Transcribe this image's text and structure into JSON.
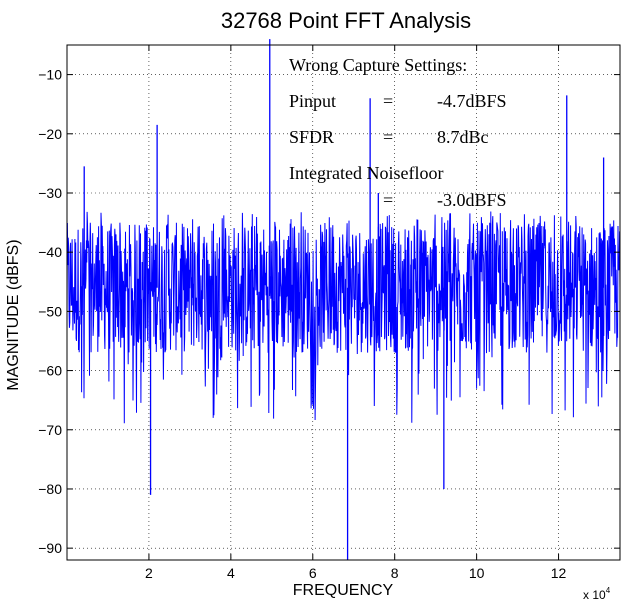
{
  "chart_data": {
    "type": "line",
    "title": "32768 Point FFT Analysis",
    "xlabel": "FREQUENCY",
    "ylabel": "MAGNITUDE (dBFS)",
    "x_exponent_label": "x 10",
    "x_exponent_power": "4",
    "xlim": [
      0,
      135000
    ],
    "ylim": [
      -92,
      -5
    ],
    "x_ticks": [
      20000,
      40000,
      60000,
      80000,
      100000,
      120000
    ],
    "x_tick_labels": [
      "2",
      "4",
      "6",
      "8",
      "10",
      "12"
    ],
    "y_ticks": [
      -10,
      -20,
      -30,
      -40,
      -50,
      -60,
      -70,
      -80,
      -90
    ],
    "y_tick_labels": [
      "−10",
      "−20",
      "−30",
      "−40",
      "−50",
      "−60",
      "−70",
      "−80",
      "−90"
    ],
    "grid": true,
    "series_color": "#0000ff",
    "noise_floor": {
      "center": -46,
      "upper": -36,
      "lower": -57
    },
    "spurs": [
      {
        "x": 4200,
        "y": -25.5
      },
      {
        "x": 20400,
        "y": -81
      },
      {
        "x": 22000,
        "y": -18.5
      },
      {
        "x": 49500,
        "y": -4
      },
      {
        "x": 68500,
        "y": -92
      },
      {
        "x": 74000,
        "y": -14
      },
      {
        "x": 76000,
        "y": -30
      },
      {
        "x": 92000,
        "y": -80
      },
      {
        "x": 122000,
        "y": -13.5
      },
      {
        "x": 131000,
        "y": -24
      }
    ],
    "annotations": [
      {
        "row": 0,
        "c1": "Wrong Capture Settings:",
        "c2": "",
        "c3": ""
      },
      {
        "row": 1,
        "c1": "Pinput",
        "c2": "=",
        "c3": "-4.7dBFS"
      },
      {
        "row": 2,
        "c1": "SFDR",
        "c2": "=",
        "c3": "8.7dBc"
      },
      {
        "row": 3,
        "c1": "Integrated Noisefloor",
        "c2": "",
        "c3": ""
      },
      {
        "row": 4,
        "c1": "",
        "c2": "=",
        "c3": "-3.0dBFS"
      }
    ]
  }
}
